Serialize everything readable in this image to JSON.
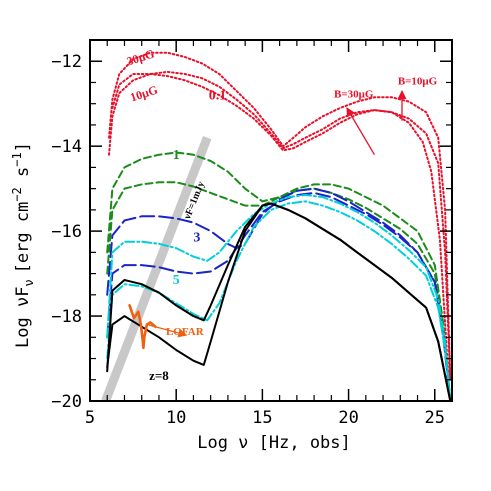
{
  "chart_data": {
    "type": "line",
    "xlabel": "Log ν [Hz, obs]",
    "ylabel": "Log νF",
    "ylabel_sub": "ν",
    "ylabel_unit": "[erg cm",
    "ylabel_exp1": "−2",
    "ylabel_mid": " s",
    "ylabel_exp2": "−1",
    "ylabel_end": "]",
    "xlim": [
      5,
      26
    ],
    "ylim": [
      -20,
      -11.5
    ],
    "x_ticks": [
      5,
      10,
      15,
      20,
      25
    ],
    "x_tick_labels": [
      "5",
      "10",
      "15",
      "20",
      "25"
    ],
    "y_ticks": [
      -20,
      -18,
      -16,
      -14,
      -12
    ],
    "y_tick_labels": [
      "−20",
      "−18",
      "−16",
      "−14",
      "−12"
    ],
    "grid": false,
    "legend": "none",
    "colors": {
      "red": "#e8102a",
      "green": "#1a8c1a",
      "blue": "#1a24c8",
      "cyan": "#00cfd8",
      "black": "#000000",
      "orange": "#f06010",
      "gray": "#c8c8c8"
    },
    "series": [
      {
        "color": "red",
        "dash": "dot",
        "x": [
          6.1,
          6.3,
          6.7,
          7.5,
          8.5,
          9.5,
          10.5,
          11.5,
          12.5,
          13.5,
          14.5,
          15.5,
          16.2,
          16.8,
          17.5,
          18.5,
          19.5,
          20.5,
          21.5,
          22.5,
          23.5,
          24.5,
          25.2,
          25.6,
          25.9
        ],
        "y": [
          -13.8,
          -12.9,
          -12.3,
          -11.95,
          -11.8,
          -11.8,
          -11.9,
          -12.05,
          -12.3,
          -12.7,
          -13.1,
          -13.6,
          -14.0,
          -13.8,
          -13.55,
          -13.3,
          -13.1,
          -12.95,
          -12.85,
          -12.85,
          -12.95,
          -13.2,
          -13.8,
          -15.5,
          -19.5
        ]
      },
      {
        "color": "red",
        "dash": "dot",
        "x": [
          6.1,
          6.3,
          6.7,
          7.5,
          8.5,
          9.5,
          10.5,
          11.5,
          12.5,
          13.5,
          14.5,
          15.5,
          16.2,
          16.8,
          17.5,
          18.5,
          19.5,
          20.5,
          21.5,
          22.5,
          23.5,
          24.5,
          25.2,
          25.6,
          25.9
        ],
        "y": [
          -14.2,
          -13.3,
          -12.75,
          -12.45,
          -12.3,
          -12.25,
          -12.3,
          -12.4,
          -12.6,
          -12.9,
          -13.25,
          -13.7,
          -14.05,
          -13.95,
          -13.8,
          -13.6,
          -13.35,
          -13.2,
          -13.15,
          -13.2,
          -13.35,
          -13.7,
          -14.4,
          -16.5,
          -19.5
        ]
      },
      {
        "color": "red",
        "dash": "dot",
        "x": [
          6.3,
          6.7,
          7.5,
          8.5,
          9.5,
          10.5,
          11.5,
          12.5,
          13.5,
          14.5,
          15.5,
          16.2,
          16.8,
          17.5,
          18.5,
          19.5,
          20.5,
          21.5,
          22.5,
          23.5,
          24.3,
          24.8,
          25.3,
          25.8
        ],
        "y": [
          -13.1,
          -12.55,
          -12.3,
          -12.3,
          -12.35,
          -12.45,
          -12.6,
          -12.8,
          -13.05,
          -13.35,
          -13.75,
          -14.1,
          -14.05,
          -13.9,
          -13.7,
          -13.45,
          -13.25,
          -13.15,
          -13.2,
          -13.45,
          -13.9,
          -14.6,
          -16.2,
          -19.5
        ]
      },
      {
        "color": "green",
        "dash": "dash",
        "x": [
          6.0,
          6.3,
          7.0,
          8.0,
          9.0,
          10.0,
          11.0,
          12.0,
          13.0,
          14.0,
          15.0,
          16.0,
          17.0,
          18.0,
          19.0,
          20.0,
          21.0,
          22.0,
          23.0,
          24.0,
          25.0,
          25.5,
          25.9
        ],
        "y": [
          -16.5,
          -15.0,
          -14.5,
          -14.3,
          -14.2,
          -14.15,
          -14.2,
          -14.35,
          -14.6,
          -15.0,
          -15.3,
          -15.2,
          -15.0,
          -14.9,
          -14.9,
          -15.0,
          -15.2,
          -15.4,
          -15.7,
          -16.0,
          -16.8,
          -18.2,
          -20.0
        ]
      },
      {
        "color": "green",
        "dash": "dash",
        "x": [
          6.0,
          6.3,
          7.0,
          8.0,
          9.0,
          10.0,
          11.0,
          12.0,
          13.0,
          14.0,
          15.0,
          16.0,
          17.0,
          18.0,
          19.0,
          20.0,
          21.0,
          22.0,
          23.0,
          24.0,
          25.0,
          25.5,
          25.9
        ],
        "y": [
          -17.0,
          -15.5,
          -15.0,
          -14.9,
          -14.85,
          -14.85,
          -14.95,
          -15.1,
          -15.25,
          -15.4,
          -15.4,
          -15.2,
          -15.05,
          -15.0,
          -15.1,
          -15.25,
          -15.45,
          -15.7,
          -15.95,
          -16.3,
          -17.0,
          -18.3,
          -20.0
        ]
      },
      {
        "color": "blue",
        "dash": "longdash",
        "x": [
          6.0,
          6.3,
          7.0,
          8.0,
          9.0,
          10.0,
          11.0,
          12.0,
          13.0,
          13.5,
          14.0,
          15.0,
          16.0,
          17.0,
          18.0,
          19.0,
          20.0,
          21.0,
          22.0,
          23.0,
          24.0,
          25.0,
          25.5,
          25.9
        ],
        "y": [
          -17.5,
          -16.1,
          -15.75,
          -15.65,
          -15.65,
          -15.7,
          -15.8,
          -16.0,
          -16.3,
          -16.4,
          -16.3,
          -15.6,
          -15.25,
          -15.05,
          -15.0,
          -15.1,
          -15.3,
          -15.55,
          -15.8,
          -16.1,
          -16.5,
          -17.2,
          -18.4,
          -20.0
        ]
      },
      {
        "color": "blue",
        "dash": "longdash",
        "x": [
          6.0,
          6.3,
          7.0,
          8.0,
          9.0,
          10.0,
          11.0,
          12.0,
          13.0,
          14.0,
          15.0,
          16.0,
          17.0,
          18.0,
          19.0,
          20.0,
          21.0,
          22.0,
          23.0,
          24.0,
          25.0,
          25.5,
          25.9
        ],
        "y": [
          -18.5,
          -17.0,
          -16.8,
          -16.8,
          -16.85,
          -16.95,
          -17.0,
          -16.95,
          -16.7,
          -16.1,
          -15.55,
          -15.3,
          -15.15,
          -15.1,
          -15.2,
          -15.4,
          -15.6,
          -15.85,
          -16.15,
          -16.5,
          -17.2,
          -18.5,
          -20.0
        ]
      },
      {
        "color": "cyan",
        "dash": "dashdot",
        "x": [
          6.0,
          6.3,
          7.0,
          8.0,
          9.0,
          10.0,
          11.0,
          11.8,
          12.5,
          13.5,
          14.5,
          15.5,
          16.5,
          17.5,
          18.5,
          19.5,
          20.5,
          21.5,
          22.5,
          23.5,
          24.5,
          25.2,
          25.6,
          25.9
        ],
        "y": [
          -18.5,
          -16.5,
          -16.25,
          -16.25,
          -16.3,
          -16.4,
          -16.6,
          -16.7,
          -16.5,
          -16.0,
          -15.6,
          -15.35,
          -15.2,
          -15.15,
          -15.2,
          -15.35,
          -15.55,
          -15.8,
          -16.1,
          -16.45,
          -16.85,
          -17.6,
          -18.6,
          -20.0
        ]
      },
      {
        "color": "cyan",
        "dash": "dashdot",
        "x": [
          6.0,
          6.3,
          7.0,
          8.0,
          9.0,
          10.0,
          11.0,
          11.8,
          12.5,
          13.5,
          14.5,
          15.5,
          16.5,
          17.5,
          18.5,
          19.5,
          20.5,
          21.5,
          22.5,
          23.5,
          24.5,
          25.2,
          25.6,
          25.9
        ],
        "y": [
          -19.0,
          -17.5,
          -17.25,
          -17.3,
          -17.45,
          -17.7,
          -17.95,
          -18.1,
          -17.7,
          -16.7,
          -15.9,
          -15.5,
          -15.35,
          -15.3,
          -15.4,
          -15.55,
          -15.75,
          -16.0,
          -16.3,
          -16.65,
          -17.05,
          -17.8,
          -18.8,
          -20.0
        ]
      },
      {
        "color": "black",
        "dash": "solid",
        "x": [
          6.0,
          6.3,
          7.0,
          8.0,
          9.0,
          10.0,
          11.0,
          11.6,
          12.0,
          13.0,
          14.0,
          15.0,
          15.5,
          16.5,
          17.5,
          18.5,
          19.5,
          20.5,
          21.5,
          22.5,
          23.5,
          24.5,
          25.2,
          25.6,
          25.9
        ],
        "y": [
          -19.3,
          -17.4,
          -17.15,
          -17.25,
          -17.45,
          -17.75,
          -18.0,
          -18.1,
          -17.75,
          -16.8,
          -15.9,
          -15.4,
          -15.35,
          -15.5,
          -15.7,
          -15.95,
          -16.2,
          -16.5,
          -16.8,
          -17.1,
          -17.45,
          -17.8,
          -18.6,
          -19.4,
          -20.0
        ]
      },
      {
        "color": "black",
        "dash": "solid",
        "x": [
          6.0,
          6.3,
          7.0,
          8.0,
          9.0,
          10.0,
          11.0,
          11.6,
          12.0,
          13.0,
          14.0,
          15.0,
          15.5,
          16.5,
          17.5,
          18.5,
          19.5,
          20.5,
          21.5,
          22.5,
          23.5,
          24.5,
          25.2,
          25.6,
          25.9
        ],
        "y": [
          -19.2,
          -18.2,
          -18.0,
          -18.25,
          -18.5,
          -18.8,
          -19.05,
          -19.15,
          -18.6,
          -17.2,
          -16.0,
          -15.4,
          -15.35,
          -15.5,
          -15.7,
          -15.95,
          -16.2,
          -16.5,
          -16.8,
          -17.1,
          -17.45,
          -17.8,
          -18.6,
          -19.4,
          -20.0
        ]
      },
      {
        "color": "orange",
        "dash": "solid",
        "x": [
          7.3,
          7.55,
          7.8,
          7.95,
          8.05,
          8.1,
          8.15,
          8.3,
          8.5,
          8.8
        ],
        "y": [
          -17.75,
          -18.05,
          -17.9,
          -18.2,
          -18.55,
          -18.75,
          -18.5,
          -18.2,
          -18.15,
          -18.25
        ]
      }
    ],
    "sensitivity_band": {
      "color": "gray",
      "x": [
        5.9,
        11.8
      ],
      "y": [
        -20.0,
        -13.8
      ]
    },
    "annotations": [
      {
        "text": "30μG",
        "x": 8.0,
        "y": -12.0,
        "color": "red",
        "size": 12,
        "rotate": -18
      },
      {
        "text": "10μG",
        "x": 8.2,
        "y": -12.85,
        "color": "red",
        "size": 12,
        "rotate": -18
      },
      {
        "text": "0.1",
        "x": 12.4,
        "y": -12.9,
        "color": "red",
        "size": 14,
        "rotate": 0
      },
      {
        "text": "B=30μG",
        "x": 20.3,
        "y": -12.85,
        "color": "red",
        "size": 11,
        "rotate": 0
      },
      {
        "text": "B=10μG",
        "x": 24.0,
        "y": -12.55,
        "color": "red",
        "size": 11,
        "rotate": 0
      },
      {
        "text": "1",
        "x": 10.0,
        "y": -14.3,
        "color": "green",
        "size": 14,
        "rotate": 0
      },
      {
        "text": "3",
        "x": 11.2,
        "y": -16.25,
        "color": "blue",
        "size": 14,
        "rotate": 0
      },
      {
        "text": "5",
        "x": 10.0,
        "y": -17.25,
        "color": "cyan",
        "size": 14,
        "rotate": 0
      },
      {
        "text": "z=8",
        "x": 9.0,
        "y": -19.5,
        "color": "black",
        "size": 13,
        "rotate": 0
      },
      {
        "text": "LOFAR",
        "x": 10.5,
        "y": -18.45,
        "color": "orange",
        "size": 11,
        "rotate": 0
      },
      {
        "text": "νF=1mJy",
        "x": 11.2,
        "y": -15.3,
        "color": "black",
        "size": 10,
        "rotate": -68
      }
    ],
    "arrows": [
      {
        "color": "red",
        "from": [
          21.5,
          -14.2
        ],
        "to": [
          19.9,
          -13.1
        ]
      },
      {
        "color": "red",
        "from": [
          23.1,
          -13.4
        ],
        "to": [
          23.1,
          -12.7
        ]
      },
      {
        "color": "orange",
        "from": [
          8.3,
          -18.2
        ],
        "to": [
          10.6,
          -18.45
        ]
      }
    ]
  }
}
